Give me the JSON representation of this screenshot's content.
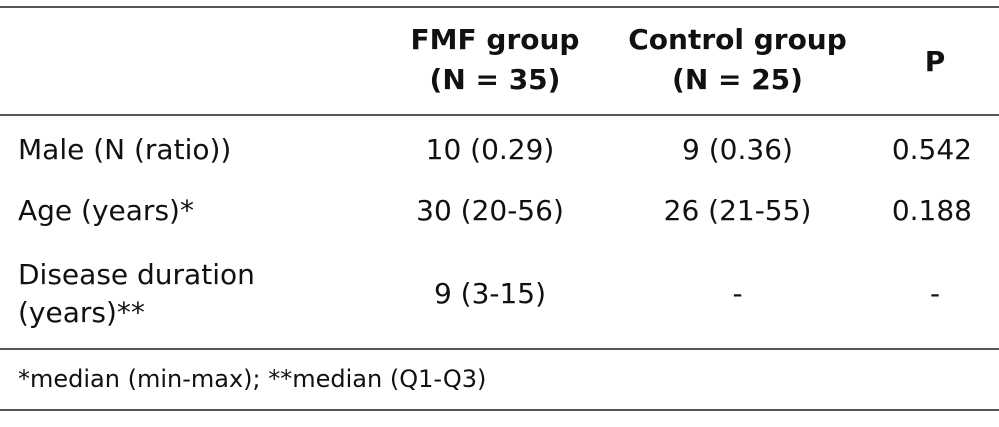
{
  "table": {
    "headers": [
      "",
      "FMF group\n(N = 35)",
      "Control group\n(N = 25)",
      "P"
    ],
    "header_lines": {
      "fmf": [
        "FMF group",
        "(N = 35)"
      ],
      "control": [
        "Control group",
        "(N = 25)"
      ],
      "p": "P"
    },
    "rows": [
      {
        "label": [
          "Male (N (ratio))"
        ],
        "fmf": "10 (0.29)",
        "control": "9 (0.36)",
        "p": "0.542"
      },
      {
        "label": [
          "Age (years)*"
        ],
        "fmf": "30 (20-56)",
        "control": "26 (21-55)",
        "p": "0.188"
      },
      {
        "label": [
          "Disease duration",
          "(years)**"
        ],
        "fmf": "9 (3-15)",
        "control": "-",
        "p": "-"
      }
    ],
    "footnote": "*median (min-max); **median (Q1-Q3)"
  }
}
